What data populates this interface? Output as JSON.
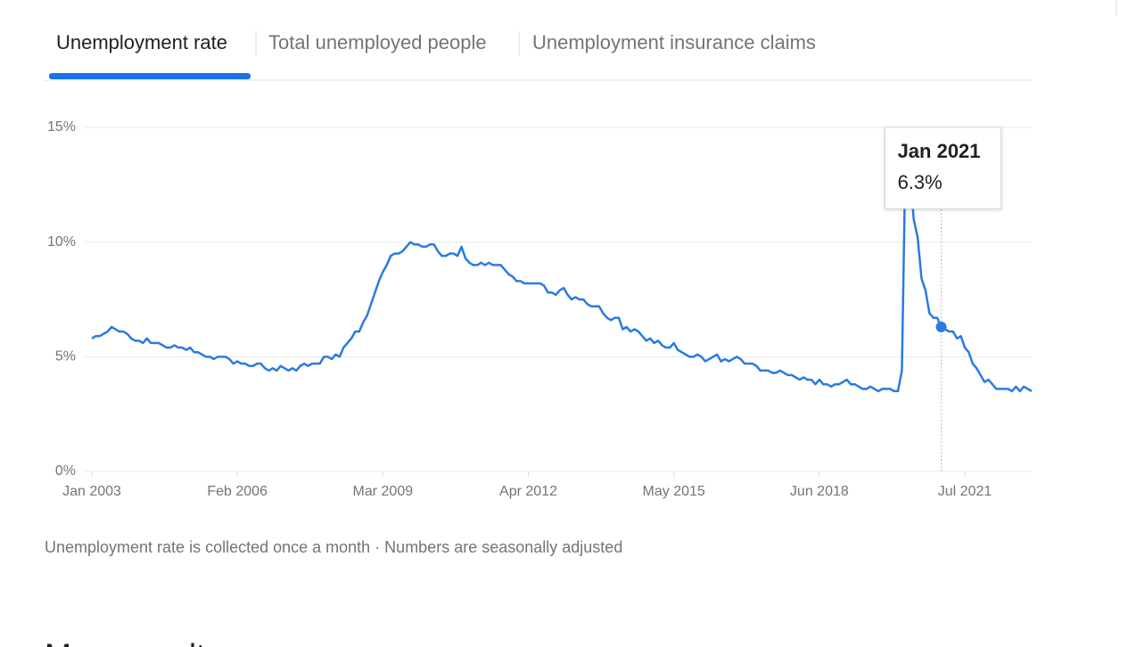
{
  "tabs": [
    "Unemployment rate",
    "Total unemployed people",
    "Unemployment insurance claims"
  ],
  "footnote": "Unemployment rate is collected once a month · Numbers are seasonally adjusted",
  "next_section_heading": "More results",
  "chart_data": {
    "type": "line",
    "color": "#2a7ae2",
    "grid": true,
    "x": [
      "2003-01",
      "2003-02",
      "2003-03",
      "2003-04",
      "2003-05",
      "2003-06",
      "2003-07",
      "2003-08",
      "2003-09",
      "2003-10",
      "2003-11",
      "2003-12",
      "2004-01",
      "2004-02",
      "2004-03",
      "2004-04",
      "2004-05",
      "2004-06",
      "2004-07",
      "2004-08",
      "2004-09",
      "2004-10",
      "2004-11",
      "2004-12",
      "2005-01",
      "2005-02",
      "2005-03",
      "2005-04",
      "2005-05",
      "2005-06",
      "2005-07",
      "2005-08",
      "2005-09",
      "2005-10",
      "2005-11",
      "2005-12",
      "2006-01",
      "2006-02",
      "2006-03",
      "2006-04",
      "2006-05",
      "2006-06",
      "2006-07",
      "2006-08",
      "2006-09",
      "2006-10",
      "2006-11",
      "2006-12",
      "2007-01",
      "2007-02",
      "2007-03",
      "2007-04",
      "2007-05",
      "2007-06",
      "2007-07",
      "2007-08",
      "2007-09",
      "2007-10",
      "2007-11",
      "2007-12",
      "2008-01",
      "2008-02",
      "2008-03",
      "2008-04",
      "2008-05",
      "2008-06",
      "2008-07",
      "2008-08",
      "2008-09",
      "2008-10",
      "2008-11",
      "2008-12",
      "2009-01",
      "2009-02",
      "2009-03",
      "2009-04",
      "2009-05",
      "2009-06",
      "2009-07",
      "2009-08",
      "2009-09",
      "2009-10",
      "2009-11",
      "2009-12",
      "2010-01",
      "2010-02",
      "2010-03",
      "2010-04",
      "2010-05",
      "2010-06",
      "2010-07",
      "2010-08",
      "2010-09",
      "2010-10",
      "2010-11",
      "2010-12",
      "2011-01",
      "2011-02",
      "2011-03",
      "2011-04",
      "2011-05",
      "2011-06",
      "2011-07",
      "2011-08",
      "2011-09",
      "2011-10",
      "2011-11",
      "2011-12",
      "2012-01",
      "2012-02",
      "2012-03",
      "2012-04",
      "2012-05",
      "2012-06",
      "2012-07",
      "2012-08",
      "2012-09",
      "2012-10",
      "2012-11",
      "2012-12",
      "2013-01",
      "2013-02",
      "2013-03",
      "2013-04",
      "2013-05",
      "2013-06",
      "2013-07",
      "2013-08",
      "2013-09",
      "2013-10",
      "2013-11",
      "2013-12",
      "2014-01",
      "2014-02",
      "2014-03",
      "2014-04",
      "2014-05",
      "2014-06",
      "2014-07",
      "2014-08",
      "2014-09",
      "2014-10",
      "2014-11",
      "2014-12",
      "2015-01",
      "2015-02",
      "2015-03",
      "2015-04",
      "2015-05",
      "2015-06",
      "2015-07",
      "2015-08",
      "2015-09",
      "2015-10",
      "2015-11",
      "2015-12",
      "2016-01",
      "2016-02",
      "2016-03",
      "2016-04",
      "2016-05",
      "2016-06",
      "2016-07",
      "2016-08",
      "2016-09",
      "2016-10",
      "2016-11",
      "2016-12",
      "2017-01",
      "2017-02",
      "2017-03",
      "2017-04",
      "2017-05",
      "2017-06",
      "2017-07",
      "2017-08",
      "2017-09",
      "2017-10",
      "2017-11",
      "2017-12",
      "2018-01",
      "2018-02",
      "2018-03",
      "2018-04",
      "2018-05",
      "2018-06",
      "2018-07",
      "2018-08",
      "2018-09",
      "2018-10",
      "2018-11",
      "2018-12",
      "2019-01",
      "2019-02",
      "2019-03",
      "2019-04",
      "2019-05",
      "2019-06",
      "2019-07",
      "2019-08",
      "2019-09",
      "2019-10",
      "2019-11",
      "2019-12",
      "2020-01",
      "2020-02",
      "2020-03",
      "2020-04",
      "2020-05",
      "2020-06",
      "2020-07",
      "2020-08",
      "2020-09",
      "2020-10",
      "2020-11",
      "2020-12",
      "2021-01",
      "2021-02",
      "2021-03",
      "2021-04",
      "2021-05",
      "2021-06",
      "2021-07",
      "2021-08",
      "2021-09",
      "2021-10",
      "2021-11",
      "2021-12",
      "2022-01",
      "2022-02",
      "2022-03",
      "2022-04",
      "2022-05",
      "2022-06",
      "2022-07",
      "2022-08",
      "2022-09",
      "2022-10",
      "2022-11",
      "2022-12"
    ],
    "values": [
      5.8,
      5.9,
      5.9,
      6.0,
      6.1,
      6.3,
      6.2,
      6.1,
      6.1,
      6.0,
      5.8,
      5.7,
      5.7,
      5.6,
      5.8,
      5.6,
      5.6,
      5.6,
      5.5,
      5.4,
      5.4,
      5.5,
      5.4,
      5.4,
      5.3,
      5.4,
      5.2,
      5.2,
      5.1,
      5.0,
      5.0,
      4.9,
      5.0,
      5.0,
      5.0,
      4.9,
      4.7,
      4.8,
      4.7,
      4.7,
      4.6,
      4.6,
      4.7,
      4.7,
      4.5,
      4.4,
      4.5,
      4.4,
      4.6,
      4.5,
      4.4,
      4.5,
      4.4,
      4.6,
      4.7,
      4.6,
      4.7,
      4.7,
      4.7,
      5.0,
      5.0,
      4.9,
      5.1,
      5.0,
      5.4,
      5.6,
      5.8,
      6.1,
      6.1,
      6.5,
      6.8,
      7.3,
      7.8,
      8.3,
      8.7,
      9.0,
      9.4,
      9.5,
      9.5,
      9.6,
      9.8,
      10.0,
      9.9,
      9.9,
      9.8,
      9.8,
      9.9,
      9.9,
      9.6,
      9.4,
      9.4,
      9.5,
      9.5,
      9.4,
      9.8,
      9.3,
      9.1,
      9.0,
      9.0,
      9.1,
      9.0,
      9.1,
      9.0,
      9.0,
      9.0,
      8.8,
      8.6,
      8.5,
      8.3,
      8.3,
      8.2,
      8.2,
      8.2,
      8.2,
      8.2,
      8.1,
      7.8,
      7.8,
      7.7,
      7.9,
      8.0,
      7.7,
      7.5,
      7.6,
      7.5,
      7.5,
      7.3,
      7.2,
      7.2,
      7.2,
      6.9,
      6.7,
      6.6,
      6.7,
      6.7,
      6.2,
      6.3,
      6.1,
      6.2,
      6.1,
      5.9,
      5.7,
      5.8,
      5.6,
      5.7,
      5.5,
      5.4,
      5.4,
      5.6,
      5.3,
      5.2,
      5.1,
      5.0,
      5.0,
      5.1,
      5.0,
      4.8,
      4.9,
      5.0,
      5.1,
      4.8,
      4.9,
      4.8,
      4.9,
      5.0,
      4.9,
      4.7,
      4.7,
      4.7,
      4.6,
      4.4,
      4.4,
      4.4,
      4.3,
      4.3,
      4.4,
      4.3,
      4.2,
      4.2,
      4.1,
      4.0,
      4.1,
      4.0,
      4.0,
      3.8,
      4.0,
      3.8,
      3.8,
      3.7,
      3.8,
      3.8,
      3.9,
      4.0,
      3.8,
      3.8,
      3.7,
      3.6,
      3.6,
      3.7,
      3.6,
      3.5,
      3.6,
      3.6,
      3.6,
      3.5,
      3.5,
      4.4,
      14.8,
      13.2,
      11.0,
      10.2,
      8.4,
      7.9,
      6.9,
      6.7,
      6.7,
      6.3,
      6.2,
      6.1,
      6.1,
      5.8,
      5.9,
      5.4,
      5.2,
      4.7,
      4.5,
      4.2,
      3.9,
      4.0,
      3.8,
      3.6,
      3.6,
      3.6,
      3.6,
      3.5,
      3.7,
      3.5,
      3.7,
      3.6,
      3.5
    ],
    "xlim": [
      "2003-01",
      "2022-12"
    ],
    "xticks": [
      {
        "value": "2003-01",
        "label": "Jan 2003"
      },
      {
        "value": "2006-02",
        "label": "Feb 2006"
      },
      {
        "value": "2009-03",
        "label": "Mar 2009"
      },
      {
        "value": "2012-04",
        "label": "Apr 2012"
      },
      {
        "value": "2015-05",
        "label": "May 2015"
      },
      {
        "value": "2018-06",
        "label": "Jun 2018"
      },
      {
        "value": "2021-07",
        "label": "Jul 2021"
      }
    ],
    "ylim": [
      0,
      15
    ],
    "yticks": [
      {
        "value": 0,
        "label": "0%"
      },
      {
        "value": 5,
        "label": "5%"
      },
      {
        "value": 10,
        "label": "10%"
      },
      {
        "value": 15,
        "label": "15%"
      }
    ],
    "tooltip": {
      "x": "2021-01",
      "title": "Jan 2021",
      "value": 6.3,
      "label": "6.3%"
    }
  }
}
